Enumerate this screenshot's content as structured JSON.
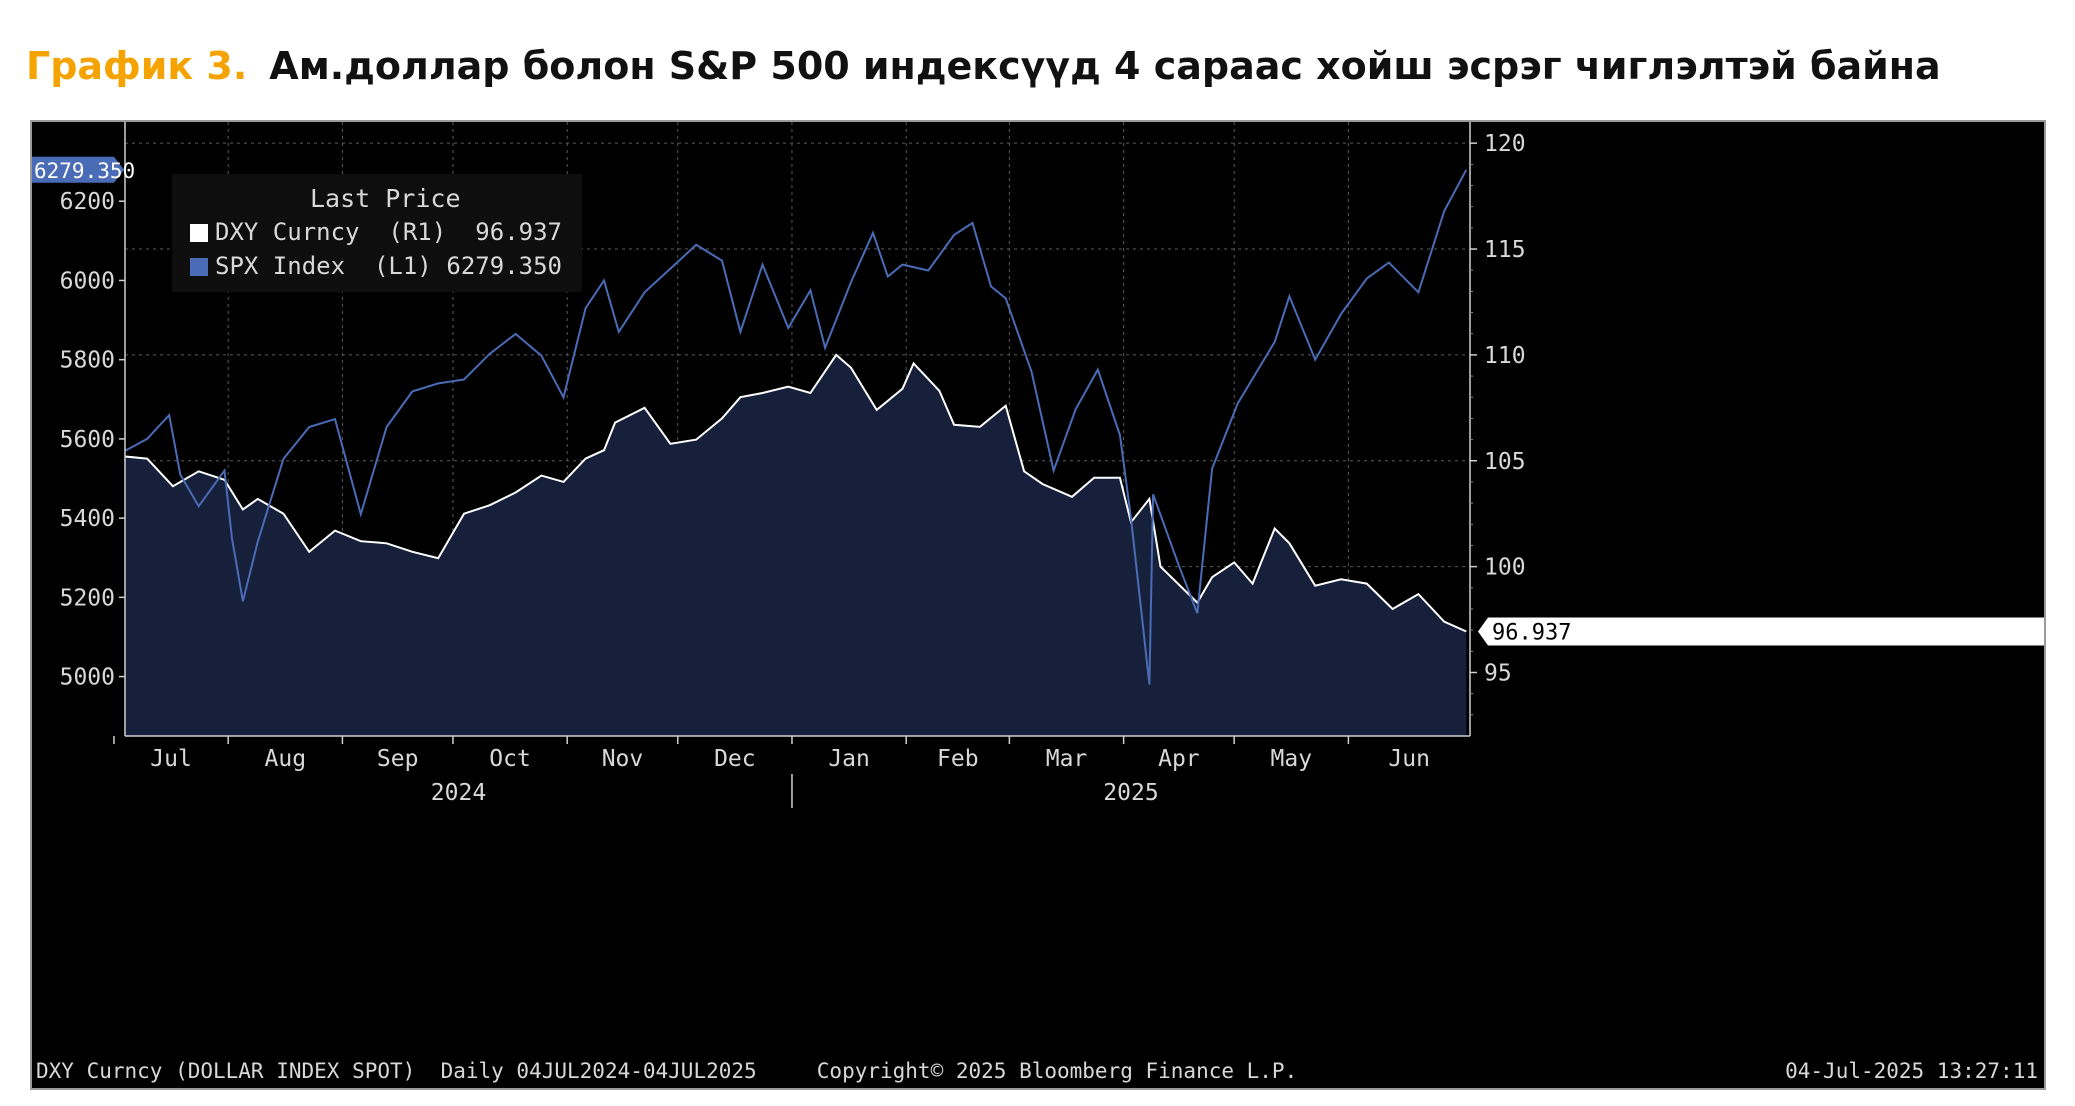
{
  "figure": {
    "label": "График 3.",
    "title": "Ам.доллар болон S&P 500 индексүүд 4 сараас хойш эсрэг чиглэлтэй байна"
  },
  "colors": {
    "label": "#f5a300",
    "background": "#000000",
    "spx_line": "#4a6bb5",
    "dxy_line": "#ffffff",
    "dxy_fill": "#16203a",
    "grid": "#5a5a5a",
    "axis_text": "#d8d8d8"
  },
  "legend": {
    "header": "Last Price",
    "items": [
      {
        "name": "DXY Curncy  (R1)",
        "value": "96.937",
        "color": "#ffffff"
      },
      {
        "name": "SPX Index  (L1)",
        "value": "6279.350",
        "color": "#4a6bb5"
      }
    ]
  },
  "footer": {
    "left": "DXY Curncy (DOLLAR INDEX SPOT)  Daily 04JUL2024-04JUL2025",
    "center": "Copyright© 2025 Bloomberg Finance L.P.",
    "right": "04-Jul-2025 13:27:11"
  },
  "chart_data": {
    "type": "line",
    "x_range": [
      "2024-07-04",
      "2025-07-04"
    ],
    "month_ticks": [
      "Jul",
      "Aug",
      "Sep",
      "Oct",
      "Nov",
      "Dec",
      "Jan",
      "Feb",
      "Mar",
      "Apr",
      "May",
      "Jun"
    ],
    "years": [
      "2024",
      "2025"
    ],
    "left_axis": {
      "ticks": [
        5000,
        5200,
        5400,
        5600,
        5800,
        6000,
        6200
      ],
      "range": [
        4850,
        6400
      ],
      "last_value_label": "6279.350"
    },
    "right_axis": {
      "ticks": [
        95,
        100,
        105,
        110,
        115,
        120
      ],
      "range": [
        92,
        121
      ],
      "last_value_label": "96.937"
    },
    "grid": true,
    "legend_position": "top-left",
    "series": [
      {
        "name": "SPX Index",
        "axis": "left",
        "points": [
          [
            "2024-07-04",
            5570
          ],
          [
            "2024-07-10",
            5600
          ],
          [
            "2024-07-16",
            5660
          ],
          [
            "2024-07-19",
            5510
          ],
          [
            "2024-07-24",
            5430
          ],
          [
            "2024-07-31",
            5520
          ],
          [
            "2024-08-02",
            5350
          ],
          [
            "2024-08-05",
            5190
          ],
          [
            "2024-08-09",
            5340
          ],
          [
            "2024-08-16",
            5550
          ],
          [
            "2024-08-23",
            5630
          ],
          [
            "2024-08-30",
            5650
          ],
          [
            "2024-09-06",
            5410
          ],
          [
            "2024-09-13",
            5630
          ],
          [
            "2024-09-20",
            5720
          ],
          [
            "2024-09-27",
            5740
          ],
          [
            "2024-10-04",
            5750
          ],
          [
            "2024-10-11",
            5815
          ],
          [
            "2024-10-18",
            5865
          ],
          [
            "2024-10-25",
            5810
          ],
          [
            "2024-10-31",
            5705
          ],
          [
            "2024-11-06",
            5930
          ],
          [
            "2024-11-11",
            6000
          ],
          [
            "2024-11-15",
            5870
          ],
          [
            "2024-11-22",
            5970
          ],
          [
            "2024-11-29",
            6030
          ],
          [
            "2024-12-06",
            6090
          ],
          [
            "2024-12-13",
            6050
          ],
          [
            "2024-12-18",
            5870
          ],
          [
            "2024-12-24",
            6040
          ],
          [
            "2024-12-31",
            5880
          ],
          [
            "2025-01-06",
            5975
          ],
          [
            "2025-01-10",
            5830
          ],
          [
            "2025-01-17",
            5995
          ],
          [
            "2025-01-23",
            6120
          ],
          [
            "2025-01-27",
            6010
          ],
          [
            "2025-01-31",
            6040
          ],
          [
            "2025-02-07",
            6025
          ],
          [
            "2025-02-14",
            6115
          ],
          [
            "2025-02-19",
            6145
          ],
          [
            "2025-02-24",
            5985
          ],
          [
            "2025-02-28",
            5955
          ],
          [
            "2025-03-07",
            5770
          ],
          [
            "2025-03-13",
            5520
          ],
          [
            "2025-03-19",
            5675
          ],
          [
            "2025-03-25",
            5775
          ],
          [
            "2025-03-31",
            5610
          ],
          [
            "2025-04-03",
            5400
          ],
          [
            "2025-04-08",
            4980
          ],
          [
            "2025-04-09",
            5460
          ],
          [
            "2025-04-16",
            5280
          ],
          [
            "2025-04-21",
            5160
          ],
          [
            "2025-04-25",
            5525
          ],
          [
            "2025-05-02",
            5690
          ],
          [
            "2025-05-12",
            5845
          ],
          [
            "2025-05-16",
            5960
          ],
          [
            "2025-05-23",
            5800
          ],
          [
            "2025-05-30",
            5915
          ],
          [
            "2025-06-06",
            6005
          ],
          [
            "2025-06-12",
            6045
          ],
          [
            "2025-06-20",
            5970
          ],
          [
            "2025-06-27",
            6175
          ],
          [
            "2025-07-03",
            6279.35
          ]
        ]
      },
      {
        "name": "DXY Curncy",
        "axis": "right",
        "points": [
          [
            "2024-07-04",
            105.2
          ],
          [
            "2024-07-10",
            105.1
          ],
          [
            "2024-07-17",
            103.8
          ],
          [
            "2024-07-24",
            104.5
          ],
          [
            "2024-07-31",
            104.1
          ],
          [
            "2024-08-05",
            102.7
          ],
          [
            "2024-08-09",
            103.2
          ],
          [
            "2024-08-16",
            102.5
          ],
          [
            "2024-08-23",
            100.7
          ],
          [
            "2024-08-30",
            101.7
          ],
          [
            "2024-09-06",
            101.2
          ],
          [
            "2024-09-13",
            101.1
          ],
          [
            "2024-09-20",
            100.7
          ],
          [
            "2024-09-27",
            100.4
          ],
          [
            "2024-10-04",
            102.5
          ],
          [
            "2024-10-11",
            102.9
          ],
          [
            "2024-10-18",
            103.5
          ],
          [
            "2024-10-25",
            104.3
          ],
          [
            "2024-10-31",
            104.0
          ],
          [
            "2024-11-06",
            105.1
          ],
          [
            "2024-11-11",
            105.5
          ],
          [
            "2024-11-14",
            106.8
          ],
          [
            "2024-11-22",
            107.5
          ],
          [
            "2024-11-29",
            105.8
          ],
          [
            "2024-12-06",
            106.0
          ],
          [
            "2024-12-13",
            107.0
          ],
          [
            "2024-12-18",
            108.0
          ],
          [
            "2024-12-24",
            108.2
          ],
          [
            "2024-12-31",
            108.5
          ],
          [
            "2025-01-06",
            108.2
          ],
          [
            "2025-01-13",
            110.0
          ],
          [
            "2025-01-17",
            109.4
          ],
          [
            "2025-01-24",
            107.4
          ],
          [
            "2025-01-31",
            108.4
          ],
          [
            "2025-02-03",
            109.6
          ],
          [
            "2025-02-10",
            108.3
          ],
          [
            "2025-02-14",
            106.7
          ],
          [
            "2025-02-21",
            106.6
          ],
          [
            "2025-02-28",
            107.6
          ],
          [
            "2025-03-05",
            104.5
          ],
          [
            "2025-03-10",
            103.9
          ],
          [
            "2025-03-18",
            103.3
          ],
          [
            "2025-03-24",
            104.2
          ],
          [
            "2025-03-31",
            104.2
          ],
          [
            "2025-04-03",
            102.1
          ],
          [
            "2025-04-08",
            103.2
          ],
          [
            "2025-04-11",
            100.0
          ],
          [
            "2025-04-21",
            98.3
          ],
          [
            "2025-04-25",
            99.5
          ],
          [
            "2025-05-01",
            100.2
          ],
          [
            "2025-05-06",
            99.2
          ],
          [
            "2025-05-12",
            101.8
          ],
          [
            "2025-05-16",
            101.1
          ],
          [
            "2025-05-23",
            99.1
          ],
          [
            "2025-05-30",
            99.4
          ],
          [
            "2025-06-06",
            99.2
          ],
          [
            "2025-06-13",
            98.0
          ],
          [
            "2025-06-20",
            98.7
          ],
          [
            "2025-06-27",
            97.4
          ],
          [
            "2025-07-03",
            96.937
          ]
        ]
      }
    ]
  }
}
